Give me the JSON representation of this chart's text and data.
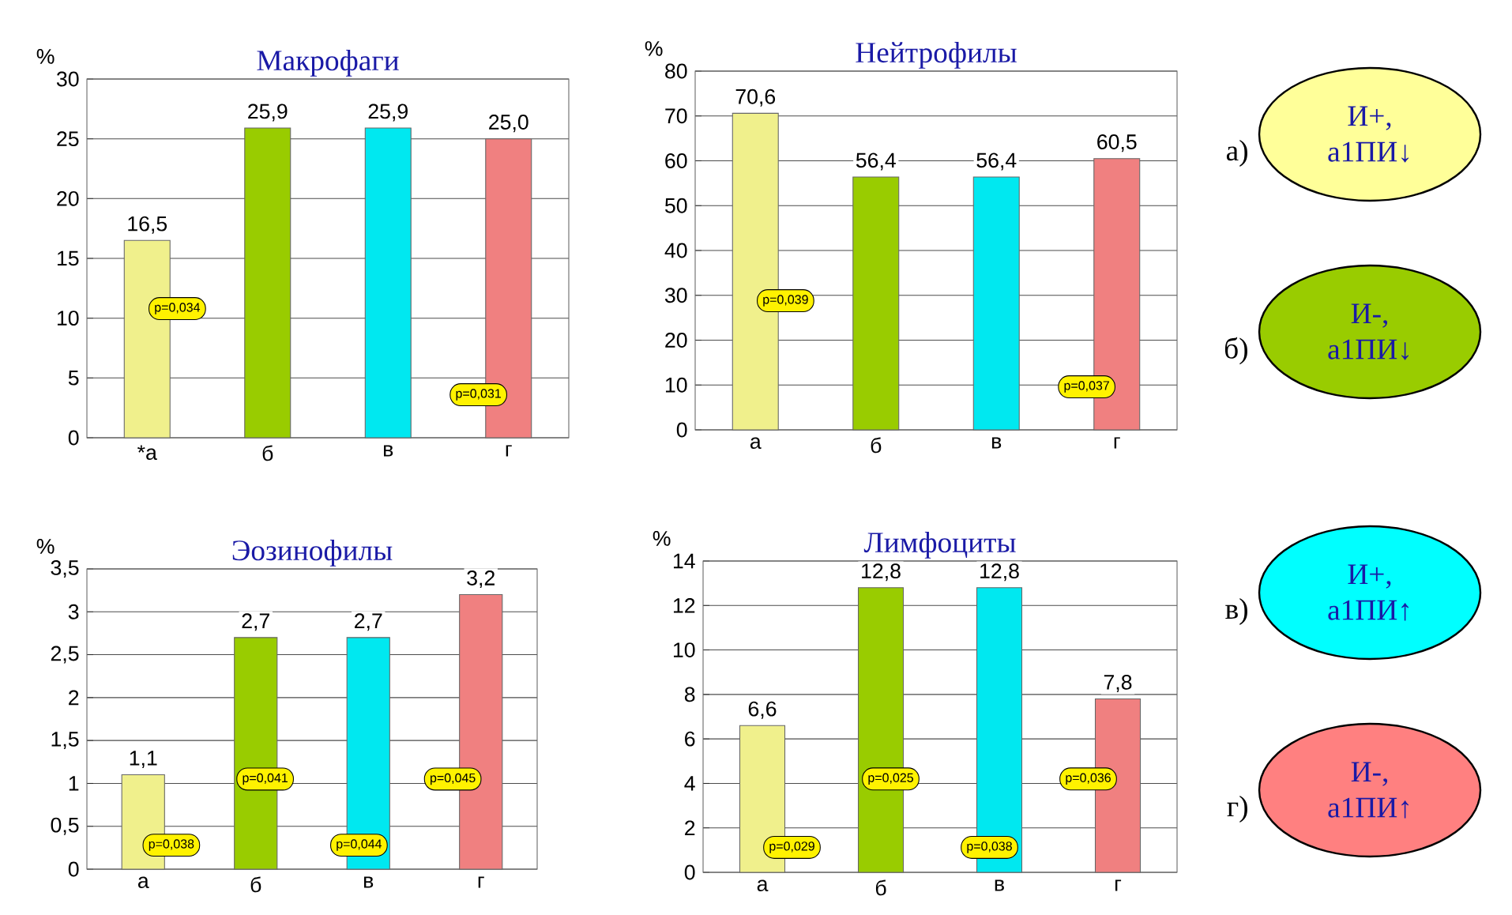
{
  "chart_data": [
    {
      "type": "bar",
      "title": "Макрофаги",
      "ylabel": "%",
      "categories": [
        "*а",
        "б",
        "в",
        "г"
      ],
      "values": [
        16.5,
        25.9,
        25.9,
        25.0
      ],
      "colors": [
        "#f0f08c",
        "#99cc00",
        "#00e8f0",
        "#f08080"
      ],
      "value_labels": [
        "16,5",
        "25,9",
        "25,9",
        "25,0"
      ],
      "ylim": [
        0,
        30
      ],
      "yticks": [
        0,
        5,
        10,
        15,
        20,
        25,
        30
      ],
      "grid": "y",
      "annotations": [
        "p=0,034",
        "p=0,031"
      ]
    },
    {
      "type": "bar",
      "title": "Нейтрофилы",
      "ylabel": "%",
      "categories": [
        "а",
        "б",
        "в",
        "г"
      ],
      "values": [
        70.6,
        56.4,
        56.4,
        60.5
      ],
      "colors": [
        "#f0f08c",
        "#99cc00",
        "#00e8f0",
        "#f08080"
      ],
      "value_labels": [
        "70,6",
        "56,4",
        "56,4",
        "60,5"
      ],
      "ylim": [
        0,
        80
      ],
      "yticks": [
        0,
        10,
        20,
        30,
        40,
        50,
        60,
        70,
        80
      ],
      "grid": "y",
      "annotations": [
        "p=0,039",
        "p=0,037"
      ]
    },
    {
      "type": "bar",
      "title": "Эозинофилы",
      "ylabel": "%",
      "categories": [
        "а",
        "б",
        "в",
        "г"
      ],
      "values": [
        1.1,
        2.7,
        2.7,
        3.2
      ],
      "colors": [
        "#f0f08c",
        "#99cc00",
        "#00e8f0",
        "#f08080"
      ],
      "value_labels": [
        "1,1",
        "2,7",
        "2,7",
        "3,2"
      ],
      "ylim": [
        0,
        3.5
      ],
      "yticks": [
        0,
        {
          "value": 0.5,
          "label": "0,5"
        },
        1,
        {
          "value": 1.5,
          "label": "1,5"
        },
        2,
        {
          "value": 2.5,
          "label": "2,5"
        },
        3,
        {
          "value": 3.5,
          "label": "3,5"
        }
      ],
      "grid": "y",
      "annotations": [
        "p=0,038",
        "p=0,041",
        "p=0,044",
        "p=0,045"
      ]
    },
    {
      "type": "bar",
      "title": "Лимфоциты",
      "ylabel": "%",
      "categories": [
        "а",
        "б",
        "в",
        "г"
      ],
      "values": [
        6.6,
        12.8,
        12.8,
        7.8
      ],
      "colors": [
        "#f0f08c",
        "#99cc00",
        "#00e8f0",
        "#f08080"
      ],
      "value_labels": [
        "6,6",
        "12,8",
        "12,8",
        "7,8"
      ],
      "ylim": [
        0,
        14
      ],
      "yticks": [
        0,
        2,
        4,
        6,
        8,
        10,
        12,
        14
      ],
      "grid": "y",
      "annotations": [
        "p=0,029",
        "p=0,025",
        "p=0,038",
        "p=0,036"
      ]
    },
    {
      "type": "other",
      "categories": [
        "а)",
        "б)",
        "в)",
        "г)"
      ],
      "annotations": [
        "И+, а1ПИ↓",
        "И-, а1ПИ↓",
        "И+, а1ПИ↑",
        "И-, а1ПИ↑"
      ],
      "colors": [
        "#ffff99",
        "#99cc00",
        "#00ffff",
        "#ff8080"
      ]
    }
  ]
}
